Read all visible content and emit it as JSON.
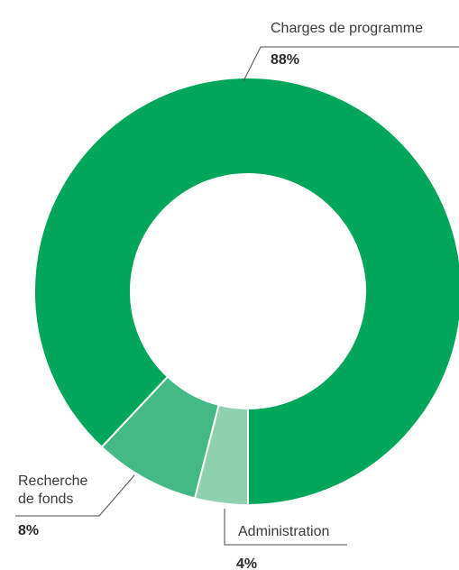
{
  "chart_data": {
    "type": "pie",
    "donut": true,
    "start": "bottom",
    "direction": "counterclockwise",
    "legend": "none",
    "slices": [
      {
        "label": "Charges de programme",
        "label_lines": [
          "Charges de programme"
        ],
        "value": 88,
        "value_label": "88%",
        "color": "#00a65a"
      },
      {
        "label": "Recherche de fonds",
        "label_lines": [
          "Recherche",
          "de fonds"
        ],
        "value": 8,
        "value_label": "8%",
        "color": "#44b985"
      },
      {
        "label": "Administration",
        "label_lines": [
          "Administration"
        ],
        "value": 4,
        "value_label": "4%",
        "color": "#8fd0ae"
      }
    ]
  }
}
